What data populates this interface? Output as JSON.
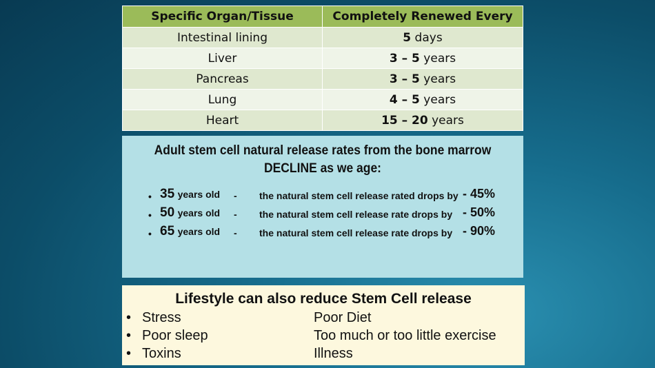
{
  "table": {
    "headers": [
      "Specific Organ/Tissue",
      "Completely Renewed Every"
    ],
    "rows": [
      {
        "organ": "Intestinal lining",
        "num": "5",
        "unit": "days"
      },
      {
        "organ": "Liver",
        "num": "3 – 5",
        "unit": "years"
      },
      {
        "organ": "Pancreas",
        "num": "3 – 5",
        "unit": "years"
      },
      {
        "organ": "Lung",
        "num": "4 – 5",
        "unit": "years"
      },
      {
        "organ": "Heart",
        "num": "15 – 20",
        "unit": "years"
      }
    ]
  },
  "stem": {
    "title_line1": "Adult stem cell natural release rates from the bone marrow",
    "title_line2": "DECLINE as we age:",
    "rows": [
      {
        "age": "35",
        "unit": "years old",
        "dash": "-",
        "desc": "the natural stem cell release rated drops by",
        "pct": "-  45%"
      },
      {
        "age": "50",
        "unit": "years old",
        "dash": "-",
        "desc": "the natural stem cell release rate drops by",
        "pct": "- 50%"
      },
      {
        "age": "65",
        "unit": "years old",
        "dash": "-",
        "desc": "the natural stem cell release rate drops by",
        "pct": "- 90%"
      }
    ]
  },
  "lifestyle": {
    "title": "Lifestyle can also reduce Stem Cell release",
    "left": [
      "Stress",
      "Poor sleep",
      "Toxins"
    ],
    "right": [
      "Poor Diet",
      "Too much or too little exercise",
      "Illness"
    ]
  }
}
